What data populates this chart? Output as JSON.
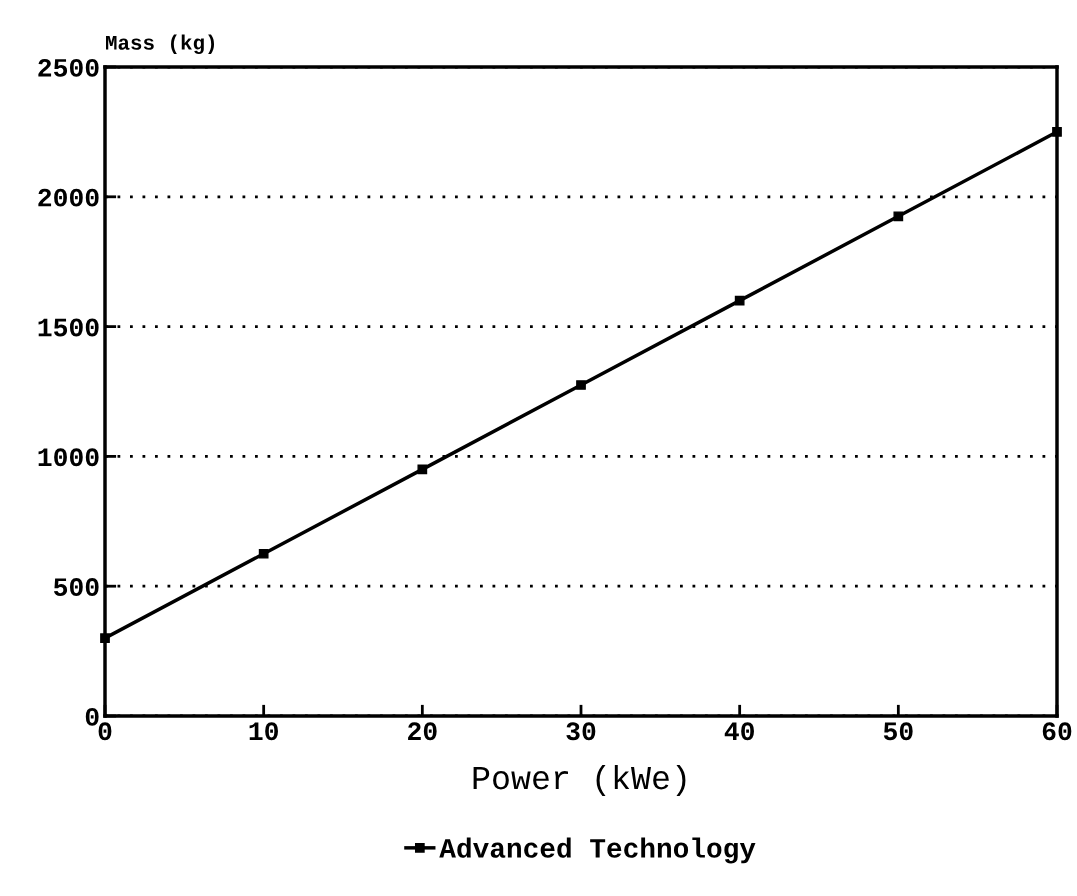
{
  "chart_data": {
    "type": "line",
    "xlabel": "Power (kWe)",
    "ylabel": "Mass (kg)",
    "x": [
      0,
      10,
      20,
      30,
      40,
      50,
      60
    ],
    "series": [
      {
        "name": "Advanced Technology",
        "color": "#000000",
        "values": [
          300,
          625,
          950,
          1275,
          1600,
          1925,
          2250
        ]
      }
    ],
    "xlim": [
      0,
      60
    ],
    "xticks": [
      0,
      10,
      20,
      30,
      40,
      50,
      60
    ],
    "ylim": [
      0,
      2500
    ],
    "yticks": [
      0,
      500,
      1000,
      1500,
      2000,
      2500
    ],
    "grid": "y",
    "legend": "bottom",
    "marker": "square",
    "line_style": "solid"
  }
}
